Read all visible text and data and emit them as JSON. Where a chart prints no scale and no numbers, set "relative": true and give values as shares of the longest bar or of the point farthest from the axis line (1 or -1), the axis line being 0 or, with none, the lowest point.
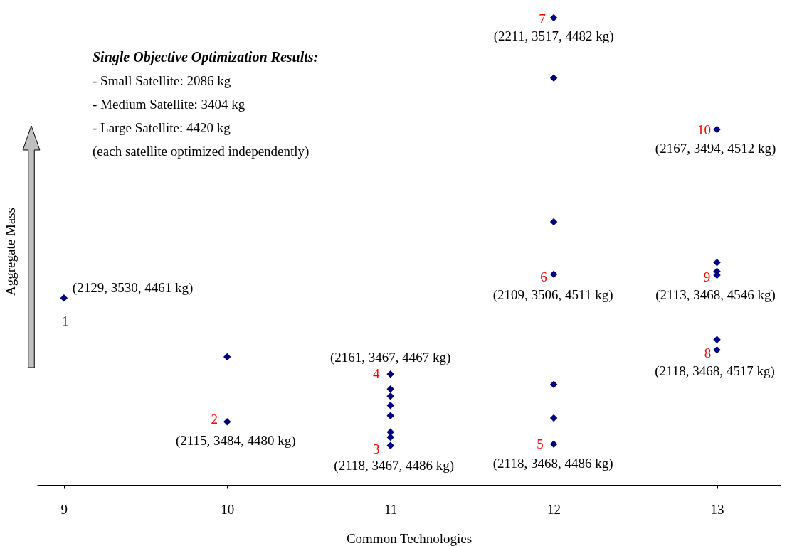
{
  "chart_data": {
    "type": "scatter",
    "xlabel": "Common Technologies",
    "ylabel": "Aggregate Mass",
    "relative": true,
    "xlim": [
      8.835,
      13.39
    ],
    "xticks": [
      9,
      10,
      11,
      12,
      13
    ],
    "grid": false,
    "marker": "diamond",
    "series": [
      {
        "color": "#000080",
        "x": [
          9,
          10,
          10,
          11,
          11,
          11,
          11,
          11,
          11,
          11,
          11,
          12,
          12,
          12,
          12,
          12,
          12,
          12,
          13,
          13,
          13,
          13,
          13,
          13
        ],
        "values": [
          0.4,
          0.274,
          0.135,
          0.237,
          0.205,
          0.19,
          0.17,
          0.148,
          0.113,
          0.102,
          0.084,
          1.0,
          0.871,
          0.563,
          0.451,
          0.215,
          0.143,
          0.087,
          0.761,
          0.476,
          0.457,
          0.449,
          0.311,
          0.289
        ]
      }
    ],
    "annotations": [
      "Single Objective Optimization Results:",
      "- Small Satellite: 2086 kg",
      "- Medium Satellite: 3404 kg",
      "- Large Satellite: 4420 kg",
      "(each satellite optimized independently)",
      {
        "text": "1",
        "x": 9,
        "y": 0.4
      },
      {
        "text": "(2129, 3530, 4461 kg)",
        "x": 9,
        "y": 0.4
      },
      {
        "text": "2",
        "x": 10,
        "y": 0.135
      },
      {
        "text": "(2115, 3484, 4480 kg)",
        "x": 10,
        "y": 0.135
      },
      {
        "text": "3",
        "x": 11,
        "y": 0.084
      },
      {
        "text": "(2118, 3467, 4486 kg)",
        "x": 11,
        "y": 0.084
      },
      {
        "text": "4",
        "x": 11,
        "y": 0.237
      },
      {
        "text": "(2161, 3467, 4467 kg)",
        "x": 11,
        "y": 0.237
      },
      {
        "text": "5",
        "x": 12,
        "y": 0.087
      },
      {
        "text": "(2118, 3468, 4486 kg)",
        "x": 12,
        "y": 0.087
      },
      {
        "text": "6",
        "x": 12,
        "y": 0.451
      },
      {
        "text": "(2109, 3506, 4511 kg)",
        "x": 12,
        "y": 0.451
      },
      {
        "text": "7",
        "x": 12,
        "y": 1.0
      },
      {
        "text": "(2211, 3517, 4482 kg)",
        "x": 12,
        "y": 1.0
      },
      {
        "text": "8",
        "x": 13,
        "y": 0.289
      },
      {
        "text": "(2118, 3468, 4517 kg)",
        "x": 13,
        "y": 0.289
      },
      {
        "text": "9",
        "x": 13,
        "y": 0.449
      },
      {
        "text": "(2113, 3468, 4546 kg)",
        "x": 13,
        "y": 0.449
      },
      {
        "text": "10",
        "x": 13,
        "y": 0.761
      },
      {
        "text": "(2167, 3494, 4512 kg)",
        "x": 13,
        "y": 0.761
      }
    ]
  }
}
